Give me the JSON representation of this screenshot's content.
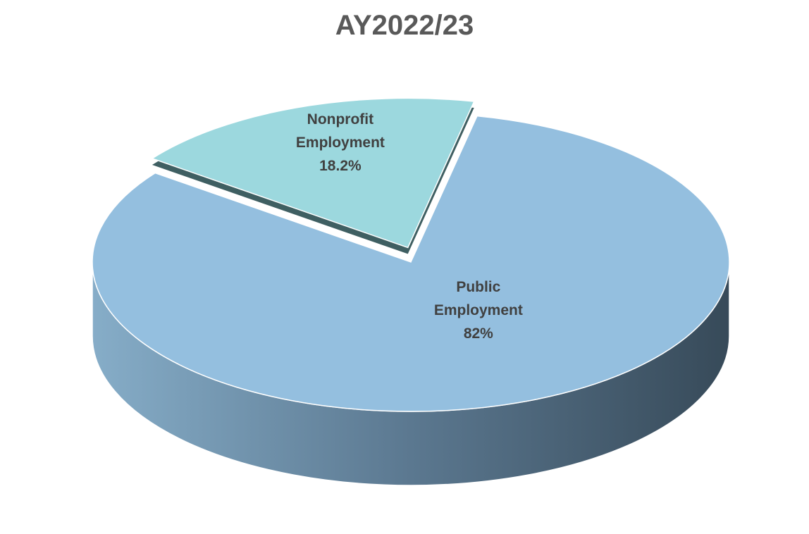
{
  "chart_data": {
    "type": "pie",
    "title": "AY2022/23",
    "categories": [
      "Public Employment",
      "Nonprofit Employment"
    ],
    "values": [
      82,
      18.2
    ],
    "value_labels": [
      "82%",
      "18.2%"
    ],
    "colors": [
      "#94bfdf",
      "#9cd8de"
    ]
  }
}
